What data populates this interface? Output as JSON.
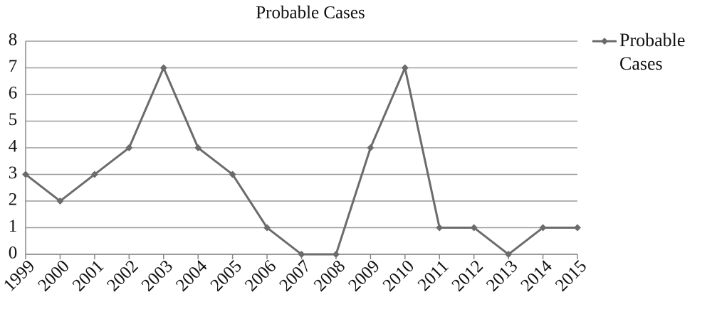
{
  "chart_data": {
    "type": "line",
    "title": "Probable Cases",
    "categories": [
      "1999",
      "2000",
      "2001",
      "2002",
      "2003",
      "2004",
      "2005",
      "2006",
      "2007",
      "2008",
      "2009",
      "2010",
      "2011",
      "2012",
      "2013",
      "2014",
      "2015"
    ],
    "series": [
      {
        "name": "Probable Cases",
        "color": "#6b6b6b",
        "values": [
          3,
          2,
          3,
          4,
          7,
          4,
          3,
          1,
          0,
          0,
          4,
          7,
          1,
          1,
          0,
          1,
          1
        ]
      }
    ],
    "ylim": [
      0,
      8
    ],
    "yticks": [
      0,
      1,
      2,
      3,
      4,
      5,
      6,
      7,
      8
    ],
    "grid": true,
    "legend": "right"
  }
}
